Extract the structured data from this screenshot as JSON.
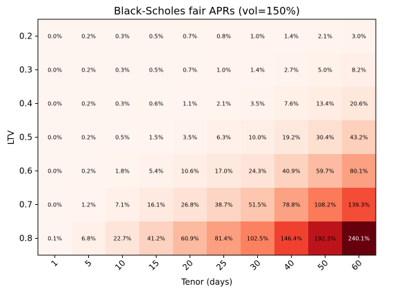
{
  "chart_data": {
    "type": "heatmap",
    "title": "Black-Scholes fair APRs (vol=150%)",
    "xlabel": "Tenor (days)",
    "ylabel": "LTV",
    "x_categories": [
      "1",
      "5",
      "10",
      "15",
      "20",
      "25",
      "30",
      "40",
      "50",
      "60"
    ],
    "y_categories": [
      "0.2",
      "0.3",
      "0.4",
      "0.5",
      "0.6",
      "0.7",
      "0.8"
    ],
    "colormap": "Reds",
    "values": [
      [
        0.0,
        0.2,
        0.3,
        0.5,
        0.7,
        0.8,
        1.0,
        1.4,
        2.1,
        3.0
      ],
      [
        0.0,
        0.2,
        0.3,
        0.5,
        0.7,
        1.0,
        1.4,
        2.7,
        5.0,
        8.2
      ],
      [
        0.0,
        0.2,
        0.3,
        0.6,
        1.1,
        2.1,
        3.5,
        7.6,
        13.4,
        20.6
      ],
      [
        0.0,
        0.2,
        0.5,
        1.5,
        3.5,
        6.3,
        10.0,
        19.2,
        30.4,
        43.2
      ],
      [
        0.0,
        0.2,
        1.8,
        5.4,
        10.6,
        17.0,
        24.3,
        40.9,
        59.7,
        80.1
      ],
      [
        0.0,
        1.2,
        7.1,
        16.1,
        26.8,
        38.7,
        51.5,
        78.8,
        108.2,
        139.3
      ],
      [
        0.1,
        6.8,
        22.7,
        41.2,
        60.9,
        81.4,
        102.5,
        146.4,
        192.3,
        240.1
      ]
    ],
    "value_suffix": "%"
  }
}
